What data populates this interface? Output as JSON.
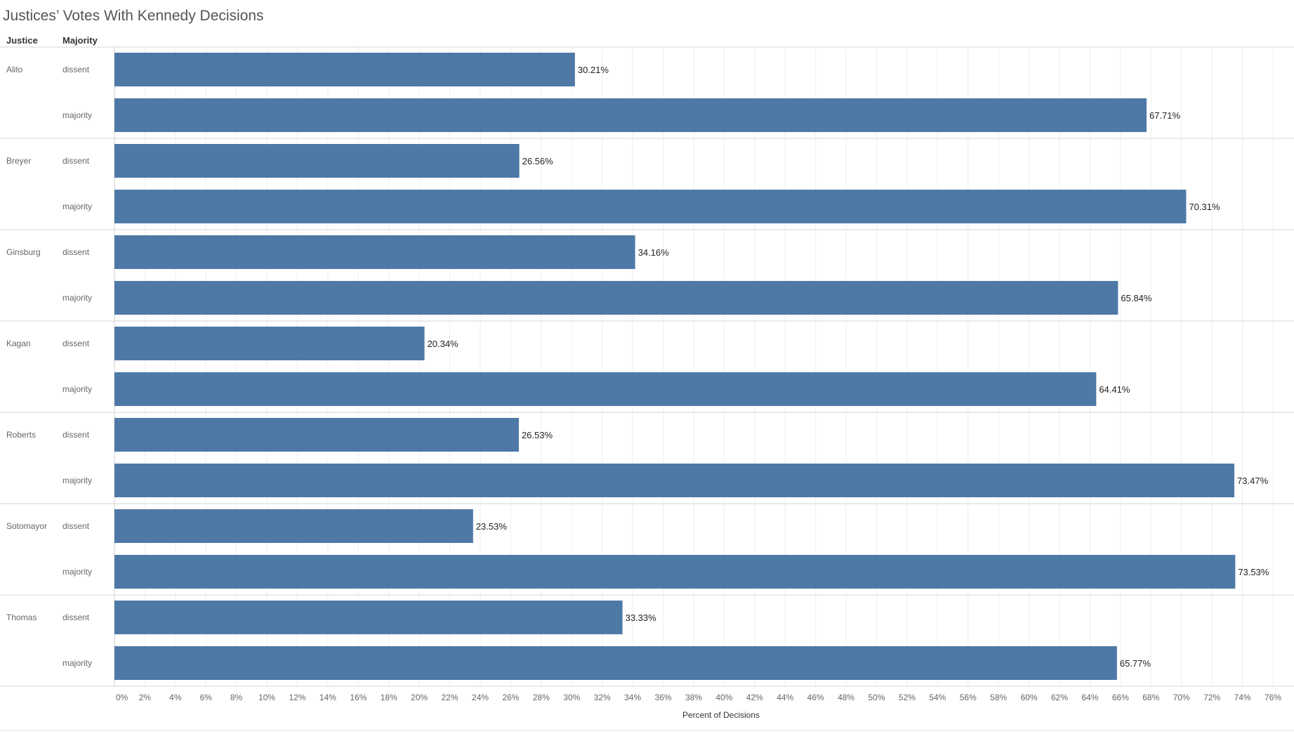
{
  "title": "Justices’ Votes With Kennedy Decisions",
  "column_headers": {
    "justice": "Justice",
    "majority": "Majority"
  },
  "colors": {
    "bar": "#4e79a7",
    "grid": "#eeeeee",
    "row_divider": "#d4d4d4"
  },
  "chart_data": {
    "type": "bar",
    "orientation": "horizontal",
    "title": "Justices’ Votes With Kennedy Decisions",
    "xlabel": "Percent of Decisions",
    "xlim": [
      0,
      77
    ],
    "x_ticks": [
      "0%",
      "2%",
      "4%",
      "6%",
      "8%",
      "10%",
      "12%",
      "14%",
      "16%",
      "18%",
      "20%",
      "22%",
      "24%",
      "26%",
      "28%",
      "30%",
      "32%",
      "34%",
      "36%",
      "38%",
      "40%",
      "42%",
      "44%",
      "46%",
      "48%",
      "50%",
      "52%",
      "54%",
      "56%",
      "58%",
      "60%",
      "62%",
      "64%",
      "66%",
      "68%",
      "70%",
      "72%",
      "74%",
      "76%"
    ],
    "grid": true,
    "groups": [
      {
        "justice": "Alito",
        "bars": [
          {
            "category": "dissent",
            "value": 30.21,
            "label": "30.21%"
          },
          {
            "category": "majority",
            "value": 67.71,
            "label": "67.71%"
          }
        ]
      },
      {
        "justice": "Breyer",
        "bars": [
          {
            "category": "dissent",
            "value": 26.56,
            "label": "26.56%"
          },
          {
            "category": "majority",
            "value": 70.31,
            "label": "70.31%"
          }
        ]
      },
      {
        "justice": "Ginsburg",
        "bars": [
          {
            "category": "dissent",
            "value": 34.16,
            "label": "34.16%"
          },
          {
            "category": "majority",
            "value": 65.84,
            "label": "65.84%"
          }
        ]
      },
      {
        "justice": "Kagan",
        "bars": [
          {
            "category": "dissent",
            "value": 20.34,
            "label": "20.34%"
          },
          {
            "category": "majority",
            "value": 64.41,
            "label": "64.41%"
          }
        ]
      },
      {
        "justice": "Roberts",
        "bars": [
          {
            "category": "dissent",
            "value": 26.53,
            "label": "26.53%"
          },
          {
            "category": "majority",
            "value": 73.47,
            "label": "73.47%"
          }
        ]
      },
      {
        "justice": "Sotomayor",
        "bars": [
          {
            "category": "dissent",
            "value": 23.53,
            "label": "23.53%"
          },
          {
            "category": "majority",
            "value": 73.53,
            "label": "73.53%"
          }
        ]
      },
      {
        "justice": "Thomas",
        "bars": [
          {
            "category": "dissent",
            "value": 33.33,
            "label": "33.33%"
          },
          {
            "category": "majority",
            "value": 65.77,
            "label": "65.77%"
          }
        ]
      }
    ]
  }
}
